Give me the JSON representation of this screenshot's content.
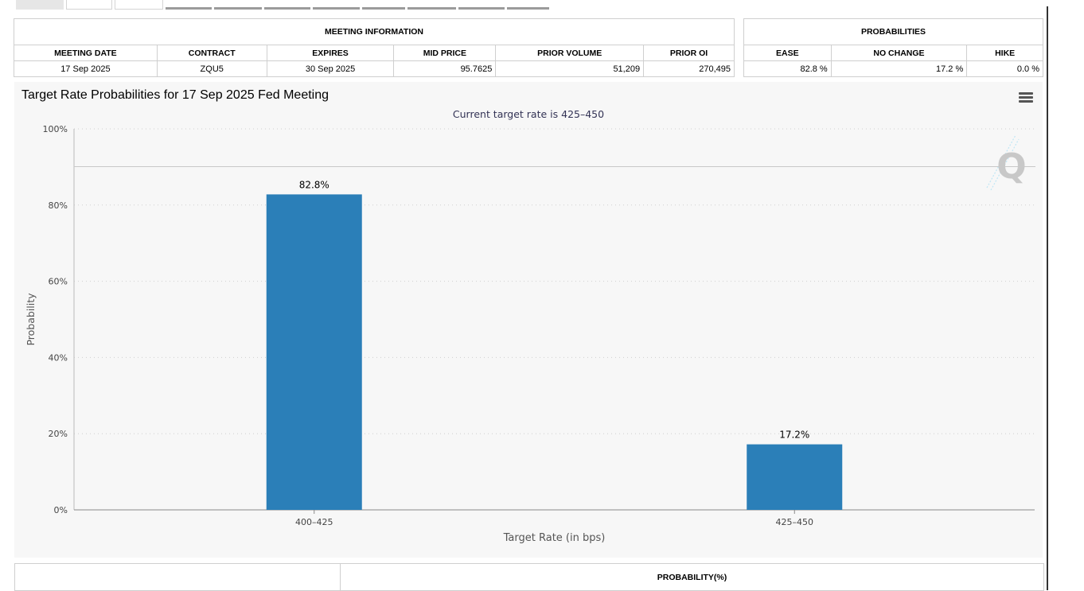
{
  "meeting_info": {
    "group_label": "MEETING INFORMATION",
    "headers": [
      "MEETING DATE",
      "CONTRACT",
      "EXPIRES",
      "MID PRICE",
      "PRIOR VOLUME",
      "PRIOR OI"
    ],
    "row": [
      "17 Sep 2025",
      "ZQU5",
      "30 Sep 2025",
      "95.7625",
      "51,209",
      "270,495"
    ]
  },
  "probabilities": {
    "group_label": "PROBABILITIES",
    "headers": [
      "EASE",
      "NO CHANGE",
      "HIKE"
    ],
    "row": [
      "82.8 %",
      "17.2 %",
      "0.0 %"
    ]
  },
  "chart_data": {
    "type": "bar",
    "title": "Target Rate Probabilities for 17 Sep 2025 Fed Meeting",
    "subtitle": "Current target rate is 425–450",
    "categories": [
      "400–425",
      "425–450"
    ],
    "values": [
      82.8,
      17.2
    ],
    "data_labels": [
      "82.8%",
      "17.2%"
    ],
    "xlabel": "Target Rate (in bps)",
    "ylabel": "Probability",
    "ylim": [
      0,
      100
    ],
    "yticks": [
      0,
      20,
      40,
      60,
      80,
      100
    ],
    "ytick_labels": [
      "0%",
      "20%",
      "40%",
      "60%",
      "80%",
      "100%"
    ],
    "grid": "dotted-horizontal",
    "bar_color": "#2b7fb8"
  },
  "bottom_table": {
    "header": "PROBABILITY(%)"
  },
  "watermark_icon": "q-logo-icon",
  "menu_icon": "hamburger-menu-icon"
}
